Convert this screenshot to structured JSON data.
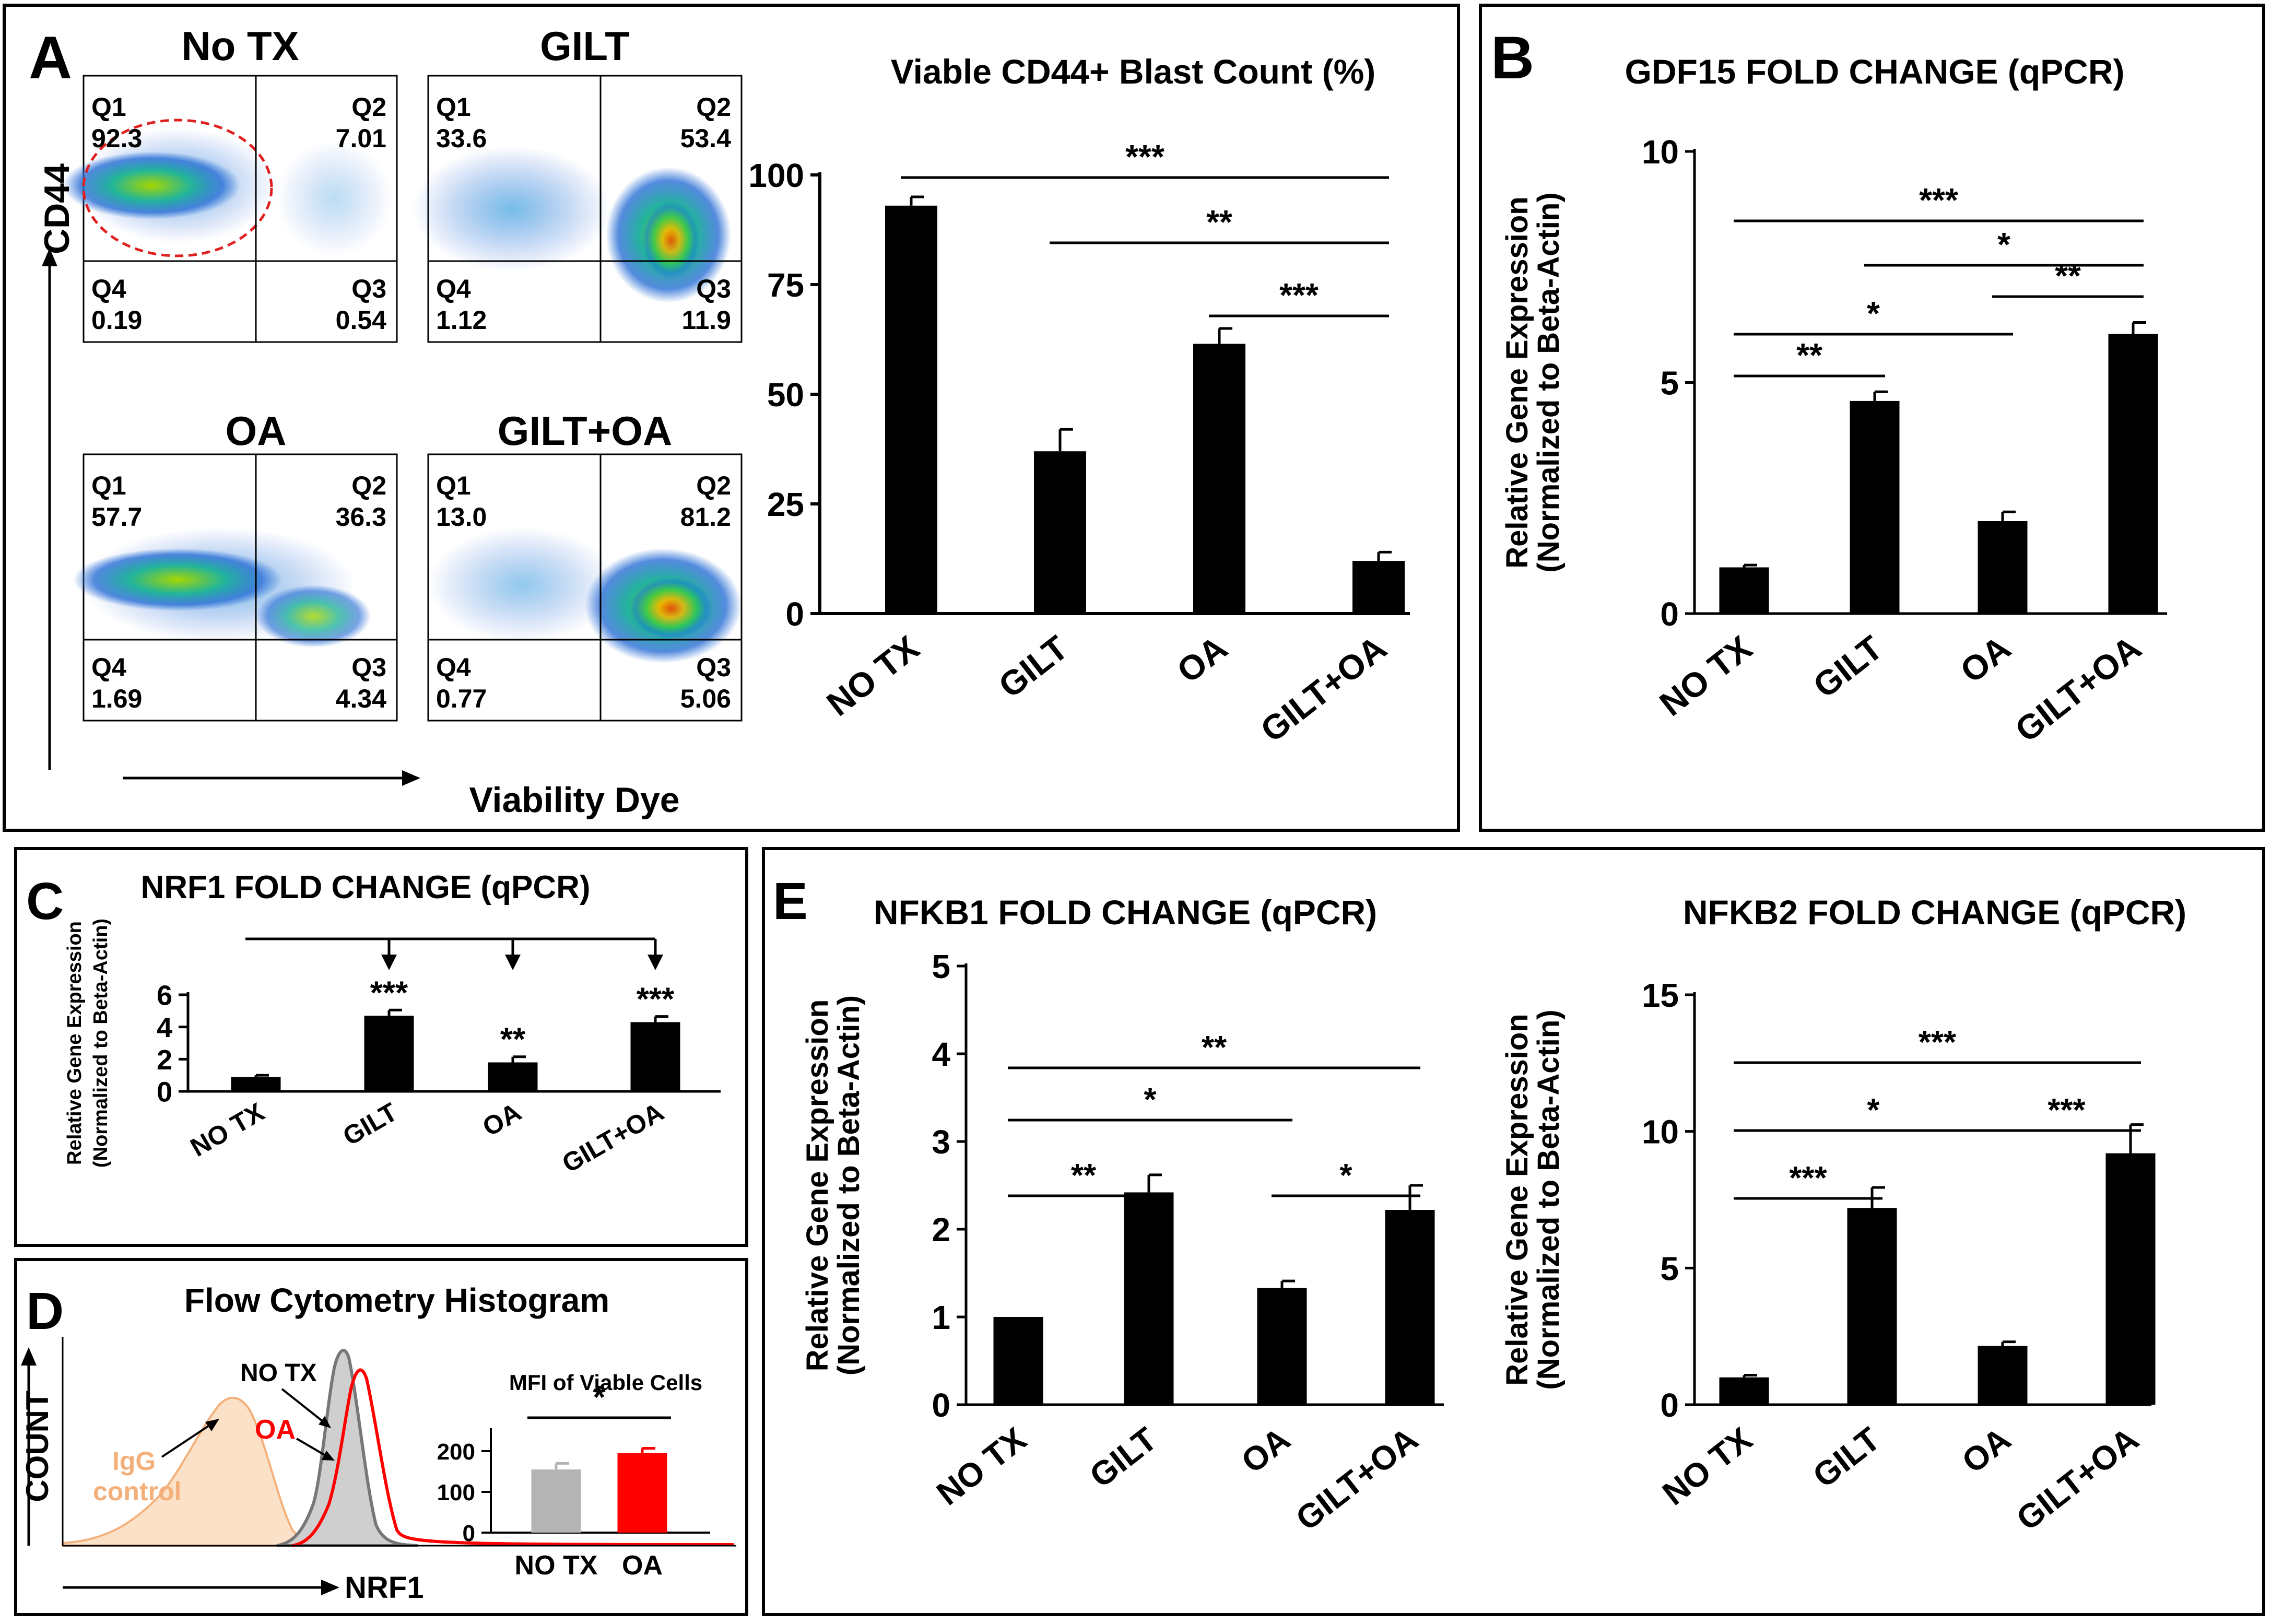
{
  "panels": {
    "A": "A",
    "B": "B",
    "C": "C",
    "D": "D",
    "E": "E"
  },
  "flow": {
    "y_label": "CD44",
    "x_label": "Viability Dye",
    "plots": [
      {
        "title": "No TX",
        "q1": "92.3",
        "q2": "7.01",
        "q3": "0.54",
        "q4": "0.19",
        "q1_label": "Q1",
        "q2_label": "Q2",
        "q3_label": "Q3",
        "q4_label": "Q4"
      },
      {
        "title": "GILT",
        "q1": "33.6",
        "q2": "53.4",
        "q3": "11.9",
        "q4": "1.12",
        "q1_label": "Q1",
        "q2_label": "Q2",
        "q3_label": "Q3",
        "q4_label": "Q4"
      },
      {
        "title": "OA",
        "q1": "57.7",
        "q2": "36.3",
        "q3": "4.34",
        "q4": "1.69",
        "q1_label": "Q1",
        "q2_label": "Q2",
        "q3_label": "Q3",
        "q4_label": "Q4"
      },
      {
        "title": "GILT+OA",
        "q1": "13.0",
        "q2": "81.2",
        "q3": "5.06",
        "q4": "0.77",
        "q1_label": "Q1",
        "q2_label": "Q2",
        "q3_label": "Q3",
        "q4_label": "Q4"
      }
    ]
  },
  "histogram": {
    "title": "Flow Cytometry Histogram",
    "x_label": "NRF1",
    "y_label": "COUNT",
    "igg_line1": "IgG",
    "igg_line2": "control",
    "notx_label": "NO TX",
    "oa_label": "OA",
    "colors": {
      "igg": "#f4c79a",
      "notx": "#888888",
      "oa": "#ff0000"
    }
  },
  "chart_data": [
    {
      "id": "A",
      "type": "bar",
      "title": "Viable CD44+ Blast Count (%)",
      "categories": [
        "NO TX",
        "GILT",
        "OA",
        "GILT+OA"
      ],
      "values": [
        93,
        37,
        61.5,
        12
      ],
      "errors": [
        2,
        5,
        3.5,
        2
      ],
      "ylim": [
        0,
        100
      ],
      "yticks": [
        0,
        25,
        50,
        75,
        100
      ],
      "ylabel": "",
      "significance": [
        {
          "from": 0,
          "to": 3,
          "label": "***"
        },
        {
          "from": 1,
          "to": 3,
          "label": "**"
        },
        {
          "from": 2,
          "to": 3,
          "label": "***"
        }
      ]
    },
    {
      "id": "B",
      "type": "bar",
      "title": "GDF15 FOLD CHANGE (qPCR)",
      "categories": [
        "NO TX",
        "GILT",
        "OA",
        "GILT+OA"
      ],
      "values": [
        1,
        4.6,
        2,
        6.05
      ],
      "errors": [
        0.05,
        0.2,
        0.2,
        0.25
      ],
      "ylim": [
        0,
        10
      ],
      "yticks": [
        0,
        5,
        10
      ],
      "ylabel": "Relative Gene Expression",
      "ylabel2": "(Normalized to Beta-Actin)",
      "significance": [
        {
          "from": 0,
          "to": 3,
          "label": "***"
        },
        {
          "from": 1,
          "to": 3,
          "label": "*"
        },
        {
          "from": 0,
          "to": 2,
          "label": "*"
        },
        {
          "from": 2,
          "to": 3,
          "label": "**"
        },
        {
          "from": 0,
          "to": 1,
          "label": "**"
        }
      ]
    },
    {
      "id": "C",
      "type": "bar",
      "title": "NRF1 FOLD CHANGE (qPCR)",
      "categories": [
        "NO TX",
        "GILT",
        "OA",
        "GILT+OA"
      ],
      "values": [
        0.9,
        4.7,
        1.8,
        4.3
      ],
      "errors": [
        0.1,
        0.35,
        0.35,
        0.35
      ],
      "ylim": [
        0,
        6
      ],
      "yticks": [
        0,
        2,
        4,
        6
      ],
      "ylabel": "Relative Gene Expression",
      "ylabel2": "(Normalized to Beta-Actin)",
      "marks": [
        "",
        "***",
        "**",
        "***"
      ]
    },
    {
      "id": "D-inset",
      "type": "bar",
      "title": "MFI of Viable Cells",
      "categories": [
        "NO TX",
        "OA"
      ],
      "values": [
        155,
        195
      ],
      "errors": [
        15,
        12
      ],
      "ylim": [
        0,
        250
      ],
      "yticks": [
        0,
        100,
        200
      ],
      "colors": [
        "#b4b4b4",
        "#ff0000"
      ],
      "significance": [
        {
          "from": 0,
          "to": 1,
          "label": "*"
        }
      ]
    },
    {
      "id": "E1",
      "type": "bar",
      "title": "NFKB1 FOLD CHANGE (qPCR)",
      "categories": [
        "NO TX",
        "GILT",
        "OA",
        "GILT+OA"
      ],
      "values": [
        1,
        2.42,
        1.33,
        2.22
      ],
      "errors": [
        0,
        0.2,
        0.08,
        0.28
      ],
      "ylim": [
        0,
        5
      ],
      "yticks": [
        0,
        1,
        2,
        3,
        4,
        5
      ],
      "ylabel": "Relative Gene Expression",
      "ylabel2": "(Normalized to Beta-Actin)",
      "significance": [
        {
          "from": 0,
          "to": 3,
          "label": "**"
        },
        {
          "from": 0,
          "to": 2,
          "label": "*"
        },
        {
          "from": 0,
          "to": 1,
          "label": "**"
        },
        {
          "from": 2,
          "to": 3,
          "label": "*"
        }
      ]
    },
    {
      "id": "E2",
      "type": "bar",
      "title": "NFKB2 FOLD CHANGE (qPCR)",
      "categories": [
        "NO TX",
        "GILT",
        "OA",
        "GILT+OA"
      ],
      "values": [
        1,
        7.2,
        2.15,
        9.2
      ],
      "errors": [
        0.08,
        0.75,
        0.15,
        1.05
      ],
      "ylim": [
        0,
        15
      ],
      "yticks": [
        0,
        5,
        10,
        15
      ],
      "ylabel": "Relative Gene Expression",
      "ylabel2": "(Normalized to Beta-Actin)",
      "significance": [
        {
          "from": 0,
          "to": 3,
          "label": "***"
        },
        {
          "from": 0,
          "to": 2,
          "label": "*"
        },
        {
          "from": 2,
          "to": 3,
          "label": "***"
        },
        {
          "from": 0,
          "to": 1,
          "label": "***"
        }
      ]
    }
  ]
}
